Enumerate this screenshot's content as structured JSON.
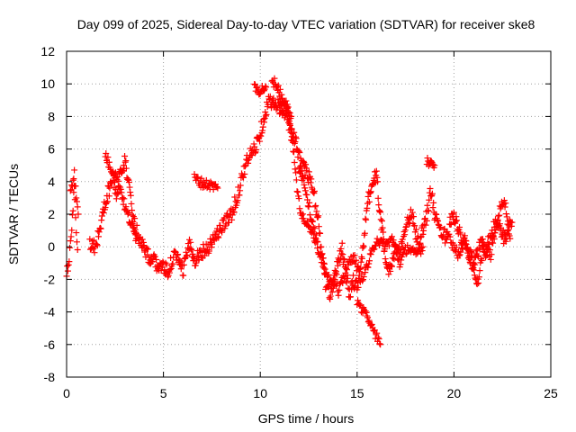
{
  "chart_data": {
    "type": "scatter",
    "title": "Day 099 of 2025, Sidereal Day-to-day VTEC variation (SDTVAR) for receiver ske8",
    "xlabel": "GPS time / hours",
    "ylabel": "SDTVAR / TECUs",
    "xlim": [
      0,
      25
    ],
    "ylim": [
      -8,
      12
    ],
    "xticks": [
      "0",
      "5",
      "10",
      "15",
      "20",
      "25"
    ],
    "yticks": [
      "-8",
      "-6",
      "-4",
      "-2",
      "0",
      "2",
      "4",
      "6",
      "8",
      "10",
      "12"
    ],
    "grid": true,
    "marker": "+",
    "color": "#ff0000",
    "series": [
      {
        "name": "SDTVAR",
        "trend": [
          [
            0.0,
            -1.5
          ],
          [
            0.1,
            -1.2
          ],
          [
            0.2,
            0.0
          ],
          [
            0.3,
            2.0
          ],
          [
            0.4,
            3.8
          ],
          [
            0.5,
            1.0
          ],
          [
            0.6,
            -0.5
          ],
          [
            1.2,
            0.3
          ],
          [
            1.5,
            0.0
          ],
          [
            1.8,
            1.5
          ],
          [
            2.0,
            2.8
          ],
          [
            2.2,
            3.5
          ],
          [
            2.4,
            4.3
          ],
          [
            2.6,
            3.0
          ],
          [
            2.8,
            4.8
          ],
          [
            3.0,
            5.3
          ],
          [
            3.2,
            4.0
          ],
          [
            3.4,
            2.0
          ],
          [
            3.6,
            1.0
          ],
          [
            3.8,
            0.5
          ],
          [
            4.0,
            0.0
          ],
          [
            4.2,
            -0.5
          ],
          [
            4.4,
            -0.8
          ],
          [
            4.6,
            -1.0
          ],
          [
            4.8,
            -1.2
          ],
          [
            5.0,
            -1.3
          ],
          [
            5.2,
            -1.5
          ],
          [
            5.4,
            -1.0
          ],
          [
            5.6,
            -0.5
          ],
          [
            5.8,
            -1.0
          ],
          [
            6.0,
            -1.5
          ],
          [
            6.2,
            -0.5
          ],
          [
            6.4,
            0.2
          ],
          [
            6.6,
            -0.8
          ],
          [
            6.8,
            -0.5
          ],
          [
            7.0,
            -0.3
          ],
          [
            7.3,
            0.0
          ],
          [
            7.6,
            0.5
          ],
          [
            7.9,
            1.0
          ],
          [
            8.2,
            1.5
          ],
          [
            8.5,
            2.0
          ],
          [
            8.8,
            3.0
          ],
          [
            9.1,
            4.5
          ],
          [
            9.4,
            5.5
          ],
          [
            9.7,
            6.0
          ],
          [
            10.0,
            7.0
          ],
          [
            10.2,
            8.0
          ],
          [
            10.4,
            8.8
          ],
          [
            10.6,
            9.0
          ],
          [
            10.8,
            8.5
          ],
          [
            11.0,
            8.7
          ],
          [
            11.2,
            8.5
          ],
          [
            11.4,
            8.0
          ],
          [
            11.6,
            7.0
          ],
          [
            11.8,
            6.5
          ],
          [
            12.0,
            5.5
          ],
          [
            12.2,
            5.0
          ],
          [
            12.4,
            4.5
          ],
          [
            12.6,
            4.0
          ],
          [
            12.8,
            3.0
          ],
          [
            13.0,
            1.5
          ],
          [
            13.2,
            -0.5
          ],
          [
            13.4,
            -2.5
          ],
          [
            13.6,
            -3.0
          ],
          [
            13.8,
            -2.0
          ],
          [
            14.0,
            -1.0
          ],
          [
            14.2,
            0.0
          ],
          [
            14.4,
            -1.5
          ],
          [
            14.6,
            -3.0
          ],
          [
            14.8,
            -2.0
          ],
          [
            15.0,
            -2.5
          ],
          [
            15.2,
            -1.0
          ],
          [
            15.4,
            1.0
          ],
          [
            15.6,
            3.0
          ],
          [
            15.8,
            4.0
          ],
          [
            16.0,
            4.3
          ],
          [
            16.2,
            2.0
          ],
          [
            16.4,
            0.0
          ],
          [
            16.6,
            -1.5
          ],
          [
            16.8,
            -1.0
          ],
          [
            17.0,
            0.0
          ],
          [
            17.2,
            -0.5
          ],
          [
            17.4,
            0.5
          ],
          [
            17.6,
            1.5
          ],
          [
            17.8,
            2.0
          ],
          [
            18.0,
            1.0
          ],
          [
            18.2,
            0.0
          ],
          [
            18.4,
            1.0
          ],
          [
            18.6,
            2.0
          ],
          [
            18.8,
            3.5
          ],
          [
            19.0,
            2.0
          ],
          [
            19.2,
            1.0
          ],
          [
            19.4,
            1.0
          ],
          [
            19.6,
            0.5
          ],
          [
            19.8,
            1.5
          ],
          [
            20.0,
            2.0
          ],
          [
            20.2,
            1.0
          ],
          [
            20.4,
            0.5
          ],
          [
            20.6,
            0.0
          ],
          [
            20.8,
            -0.5
          ],
          [
            21.0,
            -1.0
          ],
          [
            21.2,
            -0.5
          ],
          [
            21.4,
            0.5
          ],
          [
            21.6,
            -0.5
          ],
          [
            21.8,
            0.5
          ],
          [
            22.0,
            1.0
          ],
          [
            22.2,
            1.5
          ],
          [
            22.4,
            1.0
          ],
          [
            22.6,
            0.5
          ],
          [
            22.8,
            1.0
          ],
          [
            23.0,
            1.5
          ]
        ],
        "branches": [
          [
            [
              11.0,
              8.3
            ],
            [
              11.3,
              9.0
            ],
            [
              11.5,
              8.0
            ],
            [
              11.7,
              6.0
            ],
            [
              11.9,
              3.5
            ],
            [
              12.1,
              2.0
            ],
            [
              12.4,
              1.5
            ],
            [
              12.8,
              0.5
            ],
            [
              13.2,
              -1.0
            ],
            [
              13.6,
              -2.0
            ],
            [
              14.0,
              -2.5
            ],
            [
              14.5,
              -3.0
            ],
            [
              15.0,
              -3.5
            ],
            [
              15.4,
              -4.0
            ],
            [
              15.8,
              -5.0
            ],
            [
              16.2,
              -6.0
            ]
          ],
          [
            [
              10.6,
              10.2
            ],
            [
              10.8,
              10.0
            ],
            [
              11.0,
              9.5
            ],
            [
              11.2,
              9.0
            ],
            [
              11.4,
              8.5
            ],
            [
              11.6,
              8.0
            ]
          ],
          [
            [
              9.7,
              9.7
            ],
            [
              10.0,
              9.6
            ],
            [
              10.3,
              9.8
            ]
          ],
          [
            [
              6.6,
              4.2
            ],
            [
              7.0,
              3.9
            ],
            [
              7.4,
              3.8
            ],
            [
              7.8,
              3.6
            ]
          ],
          [
            [
              18.6,
              5.3
            ],
            [
              18.8,
              5.1
            ],
            [
              19.0,
              5.0
            ]
          ],
          [
            [
              0.2,
              3.5
            ],
            [
              0.4,
              4.5
            ],
            [
              0.5,
              3.0
            ],
            [
              0.6,
              2.0
            ]
          ],
          [
            [
              2.0,
              5.7
            ],
            [
              2.2,
              5.0
            ],
            [
              2.5,
              4.5
            ],
            [
              2.8,
              3.5
            ],
            [
              3.0,
              2.5
            ],
            [
              3.3,
              1.5
            ],
            [
              3.6,
              0.5
            ]
          ],
          [
            [
              12.0,
              5.0
            ],
            [
              12.3,
              3.8
            ],
            [
              12.6,
              2.0
            ],
            [
              13.0,
              0.0
            ],
            [
              13.5,
              -1.5
            ],
            [
              14.0,
              -3.0
            ],
            [
              14.4,
              -1.5
            ],
            [
              14.8,
              -0.5
            ],
            [
              15.2,
              -2.0
            ],
            [
              15.6,
              -1.0
            ],
            [
              16.0,
              0.5
            ],
            [
              16.4,
              0.0
            ],
            [
              16.8,
              0.5
            ],
            [
              17.2,
              -1.0
            ],
            [
              17.6,
              0.0
            ],
            [
              18.0,
              -0.5
            ],
            [
              18.4,
              0.0
            ]
          ],
          [
            [
              19.8,
              0.5
            ],
            [
              20.2,
              -0.5
            ],
            [
              20.6,
              0.5
            ],
            [
              21.0,
              -1.5
            ],
            [
              21.2,
              -2.5
            ],
            [
              21.5,
              0.0
            ],
            [
              21.9,
              -0.5
            ],
            [
              22.3,
              2.0
            ],
            [
              22.6,
              3.0
            ],
            [
              22.9,
              0.5
            ]
          ]
        ]
      }
    ]
  }
}
